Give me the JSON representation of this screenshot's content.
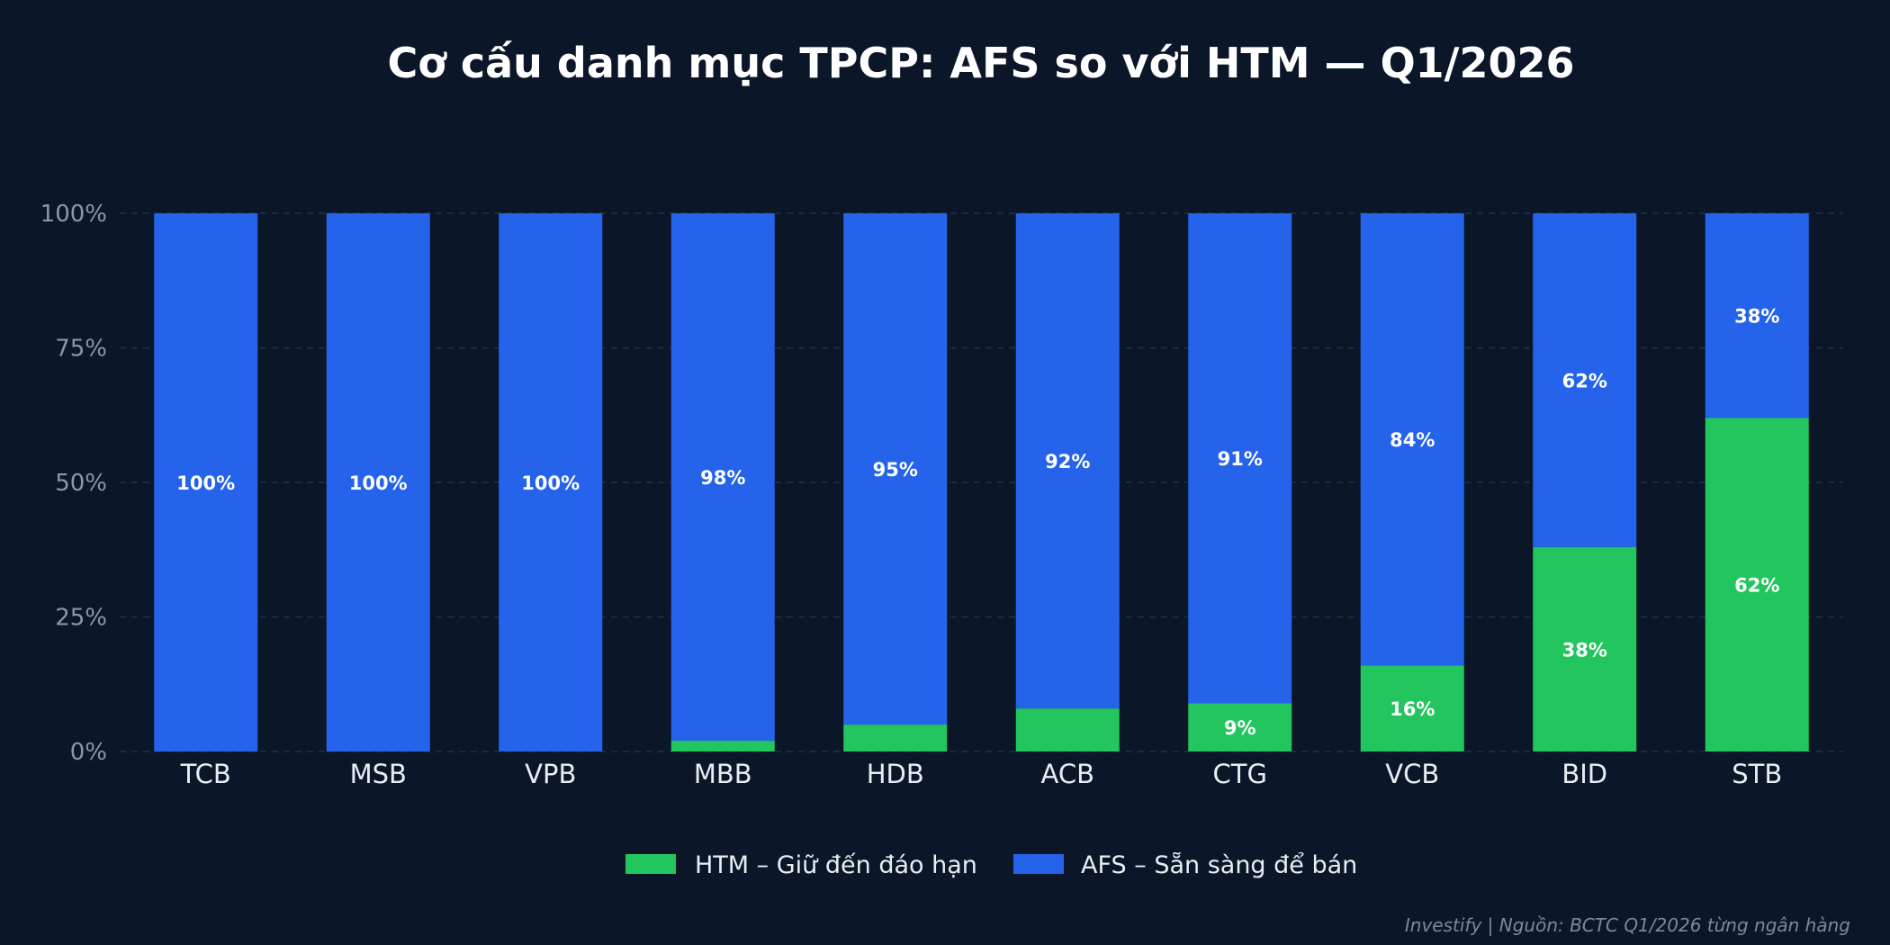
{
  "chart_data": {
    "type": "bar",
    "stacked": true,
    "title": "Cơ cấu danh mục TPCP: AFS so với HTM — Q1/2026",
    "xlabel": "",
    "ylabel": "",
    "ylim": [
      0,
      100
    ],
    "yticks": [
      0,
      25,
      50,
      75,
      100
    ],
    "ytick_labels": [
      "0%",
      "25%",
      "50%",
      "75%",
      "100%"
    ],
    "grid": "horizontal-dashed",
    "legend_position": "bottom-center",
    "categories": [
      "TCB",
      "MSB",
      "VPB",
      "MBB",
      "HDB",
      "ACB",
      "CTG",
      "VCB",
      "BID",
      "STB"
    ],
    "series": [
      {
        "name": "HTM – Giữ đến đáo hạn",
        "color": "#22c55e",
        "values": [
          0,
          0,
          0,
          2,
          5,
          8,
          9,
          16,
          38,
          62
        ],
        "labels": [
          "",
          "",
          "",
          "",
          "",
          "",
          "9%",
          "16%",
          "38%",
          "62%"
        ]
      },
      {
        "name": "AFS – Sẵn sàng để bán",
        "color": "#2563eb",
        "values": [
          100,
          100,
          100,
          98,
          95,
          92,
          91,
          84,
          62,
          38
        ],
        "labels": [
          "100%",
          "100%",
          "100%",
          "98%",
          "95%",
          "92%",
          "91%",
          "84%",
          "62%",
          "38%"
        ]
      }
    ]
  },
  "colors": {
    "background": "#0b1728",
    "grid": "#1f3047"
  },
  "footer": "Investify  |  Nguồn: BCTC Q1/2026 từng ngân hàng"
}
